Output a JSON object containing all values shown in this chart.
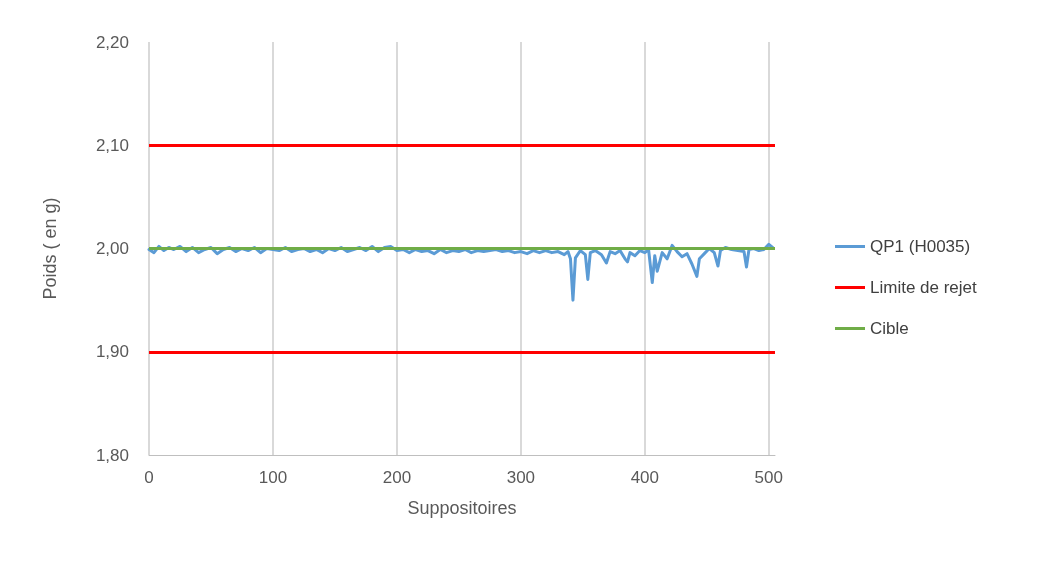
{
  "chart_data": {
    "type": "line",
    "xlabel": "Suppositoires",
    "ylabel": "Poids ( en g)",
    "xlim": [
      0,
      505
    ],
    "ylim": [
      1.8,
      2.2
    ],
    "xticks": [
      0,
      100,
      200,
      300,
      400,
      500
    ],
    "yticks": [
      {
        "value": 1.8,
        "label": "1,80"
      },
      {
        "value": 1.9,
        "label": "1,90"
      },
      {
        "value": 2.0,
        "label": "2,00"
      },
      {
        "value": 2.1,
        "label": "2,10"
      },
      {
        "value": 2.2,
        "label": "2,20"
      }
    ],
    "grid": "x",
    "legend": "right",
    "marker": "none",
    "line_style": "solid",
    "series": [
      {
        "name": "QP1 (H0035)",
        "color": "#5b9bd5",
        "x": [
          0,
          4,
          8,
          12,
          16,
          20,
          25,
          30,
          35,
          40,
          45,
          50,
          55,
          60,
          65,
          70,
          75,
          80,
          85,
          90,
          95,
          100,
          105,
          110,
          115,
          120,
          125,
          130,
          135,
          140,
          145,
          150,
          155,
          160,
          165,
          170,
          175,
          180,
          185,
          190,
          195,
          200,
          205,
          210,
          215,
          220,
          225,
          230,
          235,
          240,
          245,
          250,
          255,
          260,
          265,
          270,
          275,
          280,
          285,
          290,
          295,
          300,
          305,
          310,
          315,
          320,
          325,
          330,
          335,
          338,
          340,
          342,
          344,
          348,
          352,
          354,
          356,
          360,
          365,
          369,
          372,
          376,
          380,
          384,
          386,
          388,
          392,
          396,
          400,
          403,
          406,
          408,
          410,
          414,
          418,
          422,
          426,
          430,
          434,
          438,
          442,
          444,
          448,
          452,
          456,
          459,
          461,
          465,
          470,
          475,
          480,
          482,
          484,
          488,
          492,
          496,
          500,
          503
        ],
        "values": [
          1.999,
          1.996,
          2.002,
          1.998,
          2.001,
          1.999,
          2.002,
          1.997,
          2.001,
          1.996,
          1.999,
          2.001,
          1.995,
          1.999,
          2.001,
          1.997,
          2.0,
          1.998,
          2.001,
          1.996,
          2.0,
          1.999,
          1.998,
          2.001,
          1.997,
          1.999,
          2.0,
          1.997,
          1.999,
          1.996,
          2.0,
          1.998,
          2.001,
          1.997,
          1.999,
          2.001,
          1.998,
          2.002,
          1.997,
          2.001,
          2.002,
          1.998,
          1.999,
          1.996,
          1.999,
          1.997,
          1.998,
          1.995,
          1.999,
          1.996,
          1.998,
          1.997,
          1.999,
          1.996,
          1.998,
          1.997,
          1.998,
          1.999,
          1.997,
          1.998,
          1.996,
          1.997,
          1.995,
          1.998,
          1.996,
          1.998,
          1.996,
          1.997,
          1.994,
          1.997,
          1.99,
          1.95,
          1.991,
          1.998,
          1.994,
          1.97,
          1.996,
          1.998,
          1.994,
          1.986,
          1.997,
          1.995,
          1.998,
          1.99,
          1.987,
          1.996,
          1.993,
          1.998,
          1.996,
          1.999,
          1.967,
          1.993,
          1.978,
          1.996,
          1.99,
          2.003,
          1.997,
          1.992,
          1.995,
          1.985,
          1.973,
          1.99,
          1.995,
          2.0,
          1.996,
          1.983,
          1.998,
          2.001,
          1.999,
          1.998,
          1.997,
          1.982,
          1.999,
          2.0,
          1.998,
          1.999,
          2.004,
          2.001
        ]
      }
    ],
    "ref_lines": [
      {
        "axis": "y",
        "value": 2.1,
        "label": "Limite de rejet",
        "color": "#ff0000"
      },
      {
        "axis": "y",
        "value": 1.9,
        "color": "#ff0000"
      },
      {
        "axis": "y",
        "value": 2.0,
        "label": "Cible",
        "color": "#70ad47"
      }
    ]
  }
}
